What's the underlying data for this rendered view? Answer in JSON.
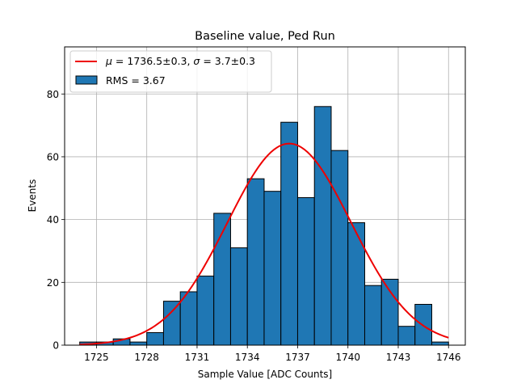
{
  "chart_data": {
    "type": "bar",
    "title": "Baseline value, Ped Run",
    "xlabel": "Sample Value [ADC Counts]",
    "ylabel": "Events",
    "xlim": [
      1723.1,
      1747.0
    ],
    "ylim": [
      0,
      95
    ],
    "grid": true,
    "xticks": [
      1725,
      1728,
      1731,
      1734,
      1737,
      1740,
      1743,
      1746
    ],
    "yticks": [
      0,
      20,
      40,
      60,
      80
    ],
    "bins": {
      "edges": [
        1724,
        1725,
        1726,
        1727,
        1728,
        1729,
        1730,
        1731,
        1732,
        1733,
        1734,
        1735,
        1736,
        1737,
        1738,
        1739,
        1740,
        1741,
        1742,
        1743,
        1744,
        1745
      ],
      "counts": [
        1,
        1,
        2,
        1,
        4,
        14,
        17,
        22,
        42,
        31,
        53,
        49,
        71,
        47,
        76,
        62,
        39,
        19,
        21,
        6,
        13,
        1
      ]
    },
    "fit": {
      "mu": 1736.5,
      "sigma": 3.7,
      "amplitude": 64.2,
      "x_range": [
        1724,
        1746
      ]
    },
    "legend": {
      "position": "upper-left",
      "entries": [
        {
          "kind": "line",
          "label_mu": "μ",
          "label_mid": " = 1736.5±0.3, ",
          "label_sigma": "σ",
          "label_end": " = 3.7±0.3"
        },
        {
          "kind": "patch",
          "label": "RMS = 3.67"
        }
      ]
    },
    "colors": {
      "bar_fill": "#1f77b4",
      "bar_edge": "#000000",
      "fit_line": "#ee0000",
      "grid": "#b0b0b0"
    }
  }
}
